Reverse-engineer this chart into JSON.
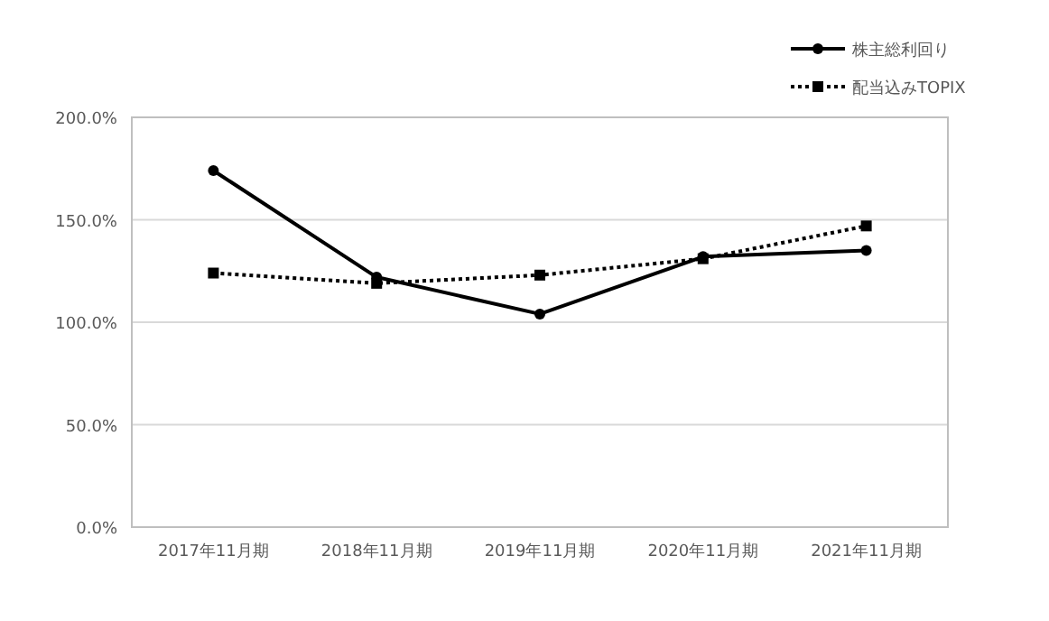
{
  "chart_data": {
    "type": "line",
    "categories": [
      "2017年11月期",
      "2018年11月期",
      "2019年11月期",
      "2020年11月期",
      "2021年11月期"
    ],
    "series": [
      {
        "name": "株主総利回り",
        "color": "#000000",
        "marker": "circle",
        "line_style": "solid",
        "values": [
          174,
          122,
          104,
          132,
          135
        ]
      },
      {
        "name": "配当込みTOPIX",
        "color": "#000000",
        "marker": "square",
        "line_style": "dotted",
        "values": [
          124,
          119,
          123,
          131,
          147
        ]
      }
    ],
    "ylim": [
      0,
      200
    ],
    "yticks": [
      {
        "value": 0,
        "label": "0.0%"
      },
      {
        "value": 50,
        "label": "50.0%"
      },
      {
        "value": 100,
        "label": "100.0%"
      },
      {
        "value": 150,
        "label": "150.0%"
      },
      {
        "value": 200,
        "label": "200.0%"
      }
    ],
    "grid": "y",
    "legend": "top right"
  }
}
